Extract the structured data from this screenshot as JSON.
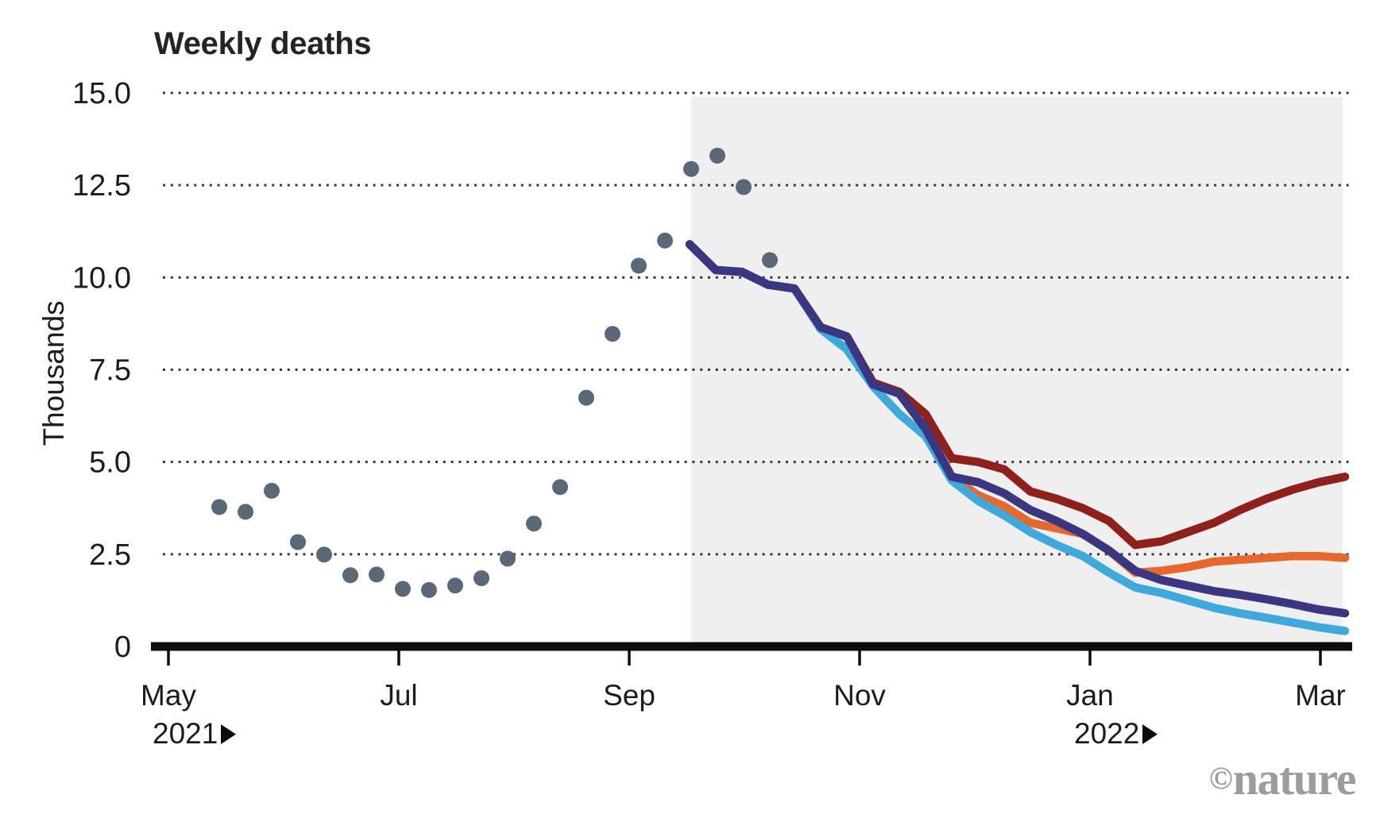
{
  "chart_data": {
    "type": "line",
    "title": "Weekly deaths",
    "ylabel": "Thousands",
    "ylim": [
      0,
      15
    ],
    "grid": "dotted-horizontal",
    "yticks": [
      {
        "value": 0,
        "label": "0"
      },
      {
        "value": 2.5,
        "label": "2.5"
      },
      {
        "value": 5.0,
        "label": "5.0"
      },
      {
        "value": 7.5,
        "label": "7.5"
      },
      {
        "value": 10.0,
        "label": "10.0"
      },
      {
        "value": 12.5,
        "label": "12.5"
      },
      {
        "value": 15.0,
        "label": "15.0"
      }
    ],
    "x_axis": {
      "tick_labels": [
        "May",
        "Jul",
        "Sep",
        "Nov",
        "Jan",
        "Mar"
      ],
      "year_markers": [
        {
          "label": "2021",
          "under_month": "May"
        },
        {
          "label": "2022",
          "under_month": "Jan"
        }
      ]
    },
    "cadence": "weekly",
    "observed": {
      "name": "reported-weekly-deaths",
      "style": "scatter",
      "starts_near": "mid-May 2021",
      "values": [
        3.78,
        3.65,
        4.22,
        2.83,
        2.49,
        1.93,
        1.95,
        1.56,
        1.53,
        1.65,
        1.85,
        2.38,
        3.33,
        4.32,
        6.74,
        8.47,
        10.32,
        11.0,
        12.94,
        13.3,
        12.45,
        10.47
      ]
    },
    "projection_region": {
      "shaded": true,
      "starts_near": "mid-Sep 2021",
      "ends_near": "early Mar 2022"
    },
    "series": [
      {
        "id": "orange",
        "role": "projection",
        "color": "#e5682e",
        "values": [
          10.9,
          10.2,
          10.15,
          9.8,
          9.7,
          8.65,
          8.4,
          7.1,
          6.85,
          5.9,
          4.6,
          4.1,
          3.8,
          3.35,
          3.2,
          3.05,
          2.6,
          2.0,
          2.05,
          2.15,
          2.3,
          2.35,
          2.4,
          2.45,
          2.45,
          2.4
        ]
      },
      {
        "id": "dark-red",
        "role": "projection",
        "color": "#8e211b",
        "values": [
          10.9,
          10.2,
          10.15,
          9.8,
          9.7,
          8.65,
          8.4,
          7.15,
          6.9,
          6.3,
          5.1,
          5.0,
          4.8,
          4.2,
          4.0,
          3.75,
          3.4,
          2.75,
          2.85,
          3.1,
          3.35,
          3.7,
          4.0,
          4.25,
          4.45,
          4.6
        ]
      },
      {
        "id": "light-blue",
        "role": "projection",
        "color": "#3fa9dc",
        "values": [
          10.9,
          10.2,
          10.15,
          9.8,
          9.7,
          8.6,
          8.05,
          7.05,
          6.3,
          5.7,
          4.5,
          3.95,
          3.55,
          3.1,
          2.75,
          2.45,
          2.0,
          1.6,
          1.45,
          1.25,
          1.05,
          0.9,
          0.78,
          0.65,
          0.52,
          0.42
        ]
      },
      {
        "id": "navy",
        "role": "projection",
        "color": "#3a3780",
        "values": [
          10.9,
          10.2,
          10.15,
          9.8,
          9.7,
          8.65,
          8.4,
          7.1,
          6.85,
          5.9,
          4.6,
          4.45,
          4.15,
          3.7,
          3.4,
          3.05,
          2.6,
          2.05,
          1.8,
          1.65,
          1.5,
          1.4,
          1.28,
          1.15,
          1.0,
          0.9
        ]
      }
    ],
    "colors": {
      "observed_dots": "#5b6877",
      "shaded_region": "#efefef",
      "gridline": "#383838",
      "axis": "#0d0d0d",
      "text": "#1c1c1c"
    }
  },
  "watermark": {
    "copyright": "©",
    "name": "nature"
  }
}
